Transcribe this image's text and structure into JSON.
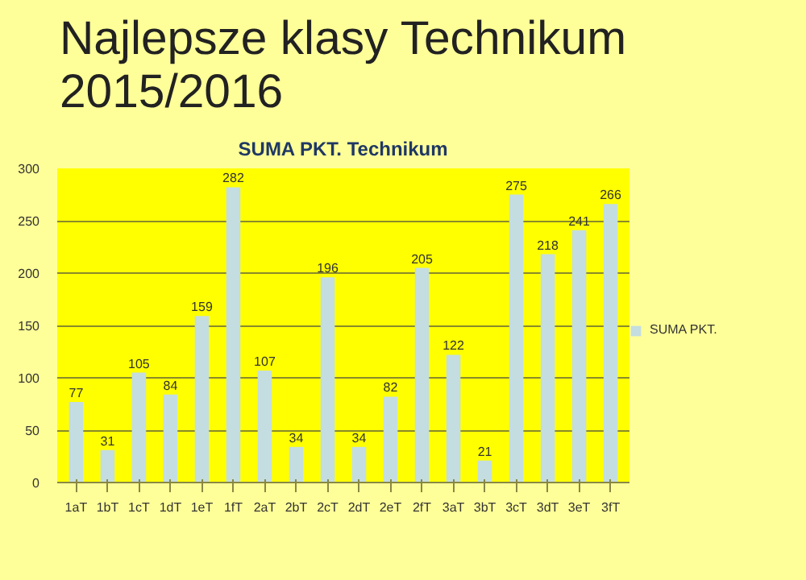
{
  "chart_data": {
    "type": "bar",
    "title": "Najlepsze klasy Technikum 2015/2016",
    "subtitle": "SUMA PKT. Technikum",
    "categories": [
      "1aT",
      "1bT",
      "1cT",
      "1dT",
      "1eT",
      "1fT",
      "2aT",
      "2bT",
      "2cT",
      "2dT",
      "2eT",
      "2fT",
      "3aT",
      "3bT",
      "3cT",
      "3dT",
      "3eT",
      "3fT"
    ],
    "series": [
      {
        "name": "SUMA PKT.",
        "color": "#c4dde0",
        "values": [
          77,
          31,
          105,
          84,
          159,
          282,
          107,
          34,
          196,
          34,
          82,
          205,
          122,
          21,
          275,
          218,
          241,
          266
        ]
      }
    ],
    "ylim": [
      0,
      300
    ],
    "yticks": [
      0,
      50,
      100,
      150,
      200,
      250,
      300
    ],
    "grid": "y",
    "legend": "right",
    "data_labels": true
  }
}
